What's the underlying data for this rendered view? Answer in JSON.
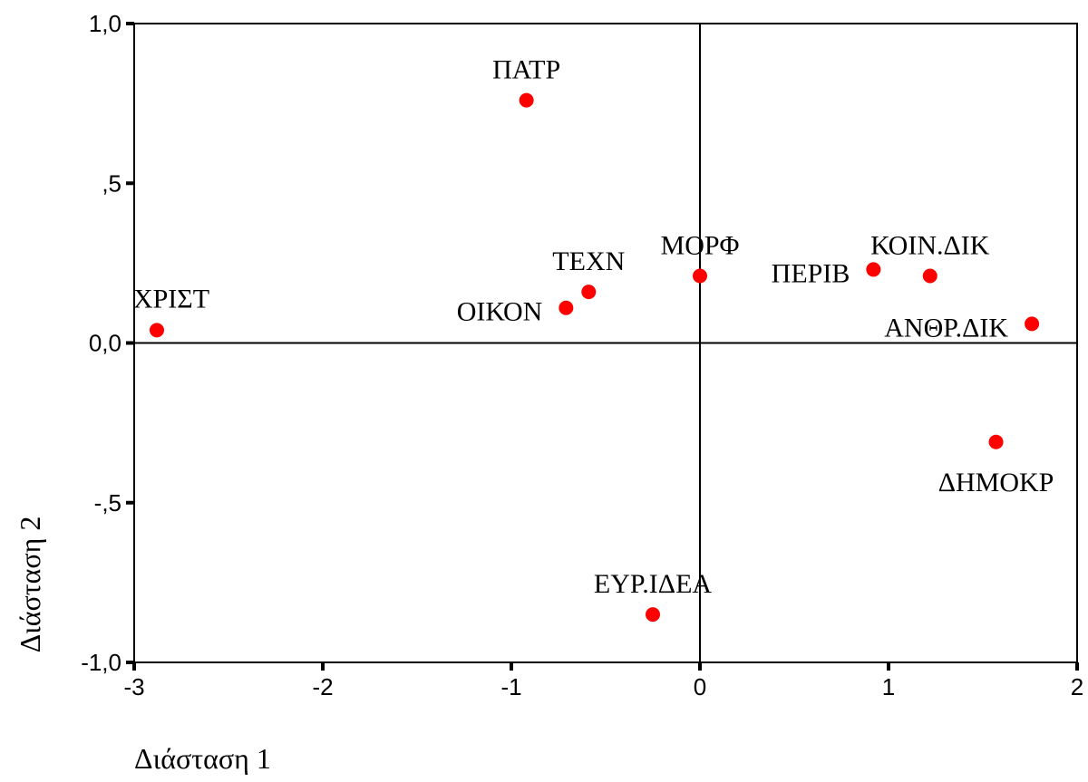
{
  "chart_data": {
    "type": "scatter",
    "xlabel": "Διάσταση 1",
    "ylabel": "Διάσταση 2",
    "xlim": [
      -3,
      2
    ],
    "ylim": [
      -1.0,
      1.0
    ],
    "x_ticks": [
      {
        "value": -3,
        "label": "-3"
      },
      {
        "value": -2,
        "label": "-2"
      },
      {
        "value": -1,
        "label": "-1"
      },
      {
        "value": 0,
        "label": "0"
      },
      {
        "value": 1,
        "label": "1"
      },
      {
        "value": 2,
        "label": "2"
      }
    ],
    "y_ticks": [
      {
        "value": 1.0,
        "label": "1,0"
      },
      {
        "value": 0.5,
        "label": ",5"
      },
      {
        "value": 0.0,
        "label": "0,0"
      },
      {
        "value": -0.5,
        "label": "-,5"
      },
      {
        "value": -1.0,
        "label": "-1,0"
      }
    ],
    "reference_lines": {
      "x": 0,
      "y": 0
    },
    "point_color": "#ff0000",
    "points": [
      {
        "label": "ΠΑΤΡ",
        "x": -0.92,
        "y": 0.76,
        "label_pos": "above"
      },
      {
        "label": "ΧΡΙΣΤ",
        "x": -2.88,
        "y": 0.04,
        "label_pos": "above-right"
      },
      {
        "label": "ΟΙΚΟΝ",
        "x": -0.71,
        "y": 0.11,
        "label_pos": "below-left"
      },
      {
        "label": "ΤΕΧΝ",
        "x": -0.59,
        "y": 0.16,
        "label_pos": "above"
      },
      {
        "label": "ΜΟΡΦ",
        "x": 0.0,
        "y": 0.21,
        "label_pos": "above"
      },
      {
        "label": "ΠΕΡΙΒ",
        "x": 0.92,
        "y": 0.23,
        "label_pos": "below-left"
      },
      {
        "label": "ΚΟΙΝ.ΔΙΚ",
        "x": 1.22,
        "y": 0.21,
        "label_pos": "above"
      },
      {
        "label": "ΑΝΘΡ.ΔΙΚ",
        "x": 1.76,
        "y": 0.06,
        "label_pos": "below-left"
      },
      {
        "label": "ΔΗΜΟΚΡ",
        "x": 1.57,
        "y": -0.31,
        "label_pos": "below"
      },
      {
        "label": "ΕΥΡ.ΙΔΕΑ",
        "x": -0.25,
        "y": -0.85,
        "label_pos": "above"
      }
    ]
  }
}
